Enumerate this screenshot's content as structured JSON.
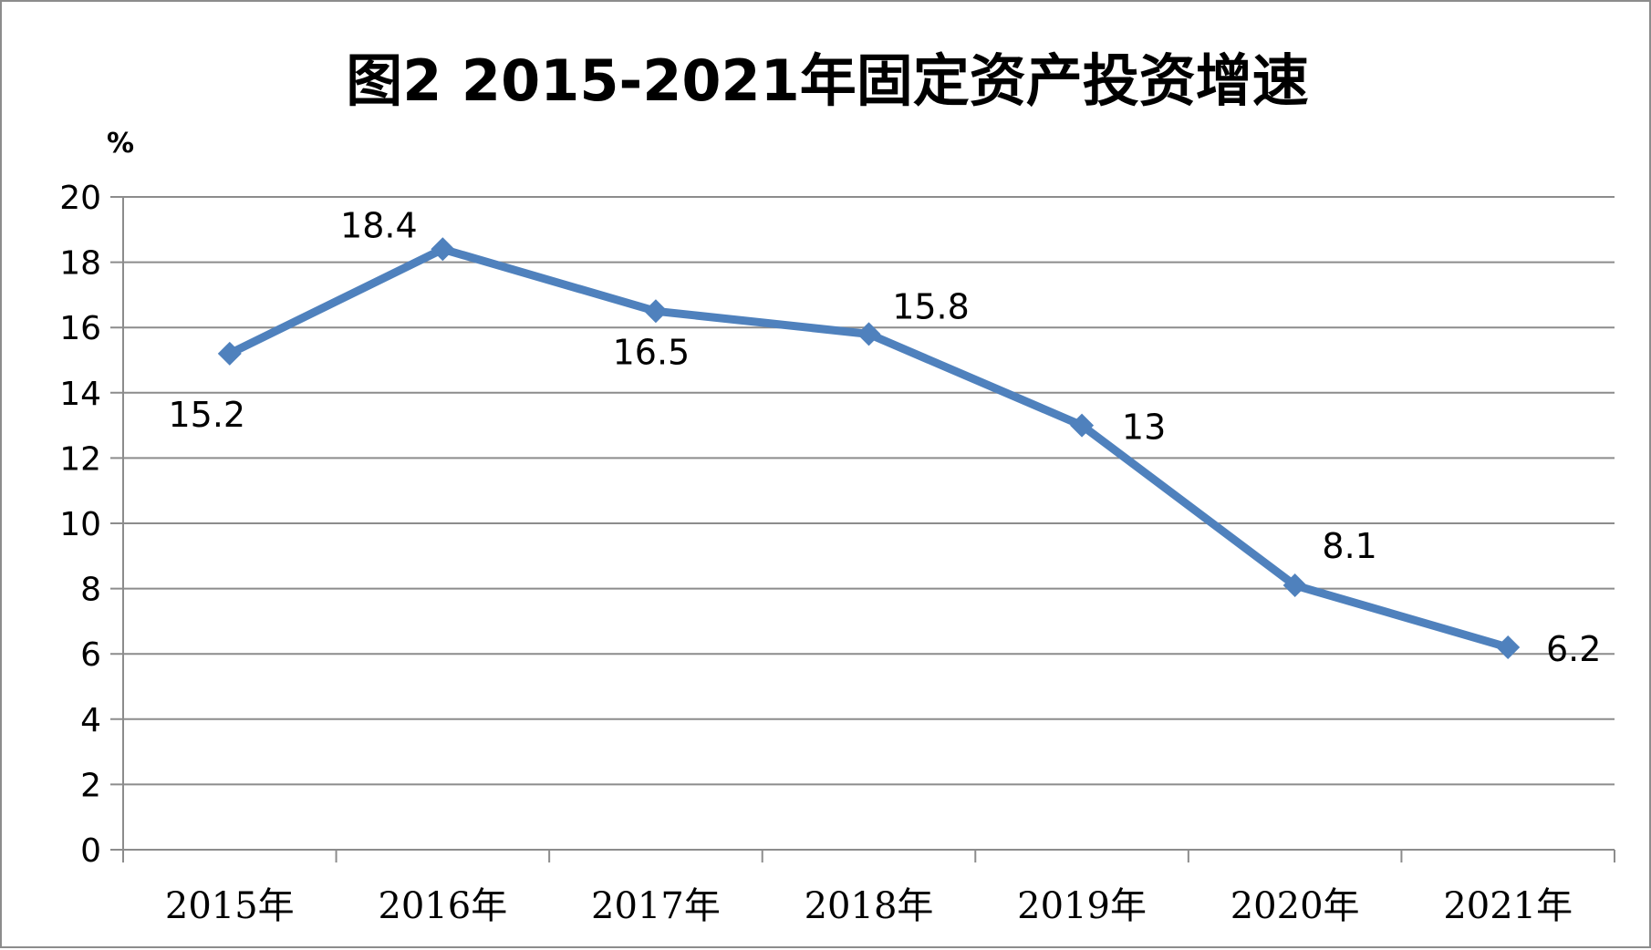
{
  "chart_data": {
    "type": "line",
    "title": "图2 2015-2021年固定资产投资增速",
    "unit_label": "%",
    "xlabel": "",
    "ylabel": "",
    "categories": [
      "2015年",
      "2016年",
      "2017年",
      "2018年",
      "2019年",
      "2020年",
      "2021年"
    ],
    "series": [
      {
        "values": [
          15.2,
          18.4,
          16.5,
          15.8,
          13,
          8.1,
          6.2
        ]
      }
    ],
    "data_labels": [
      "15.2",
      "18.4",
      "16.5",
      "15.8",
      "13",
      "8.1",
      "6.2"
    ],
    "y_ticks": [
      "0",
      "2",
      "4",
      "6",
      "8",
      "10",
      "12",
      "14",
      "16",
      "18",
      "20"
    ],
    "ylim": [
      0,
      20
    ],
    "y_step": 2,
    "grid": true,
    "legend": "none",
    "colors": {
      "line": "#4f81bd",
      "grid": "#8c8c8c",
      "axis": "#8c8c8c",
      "frame": "#8c8c8c"
    },
    "marker": "diamond"
  }
}
